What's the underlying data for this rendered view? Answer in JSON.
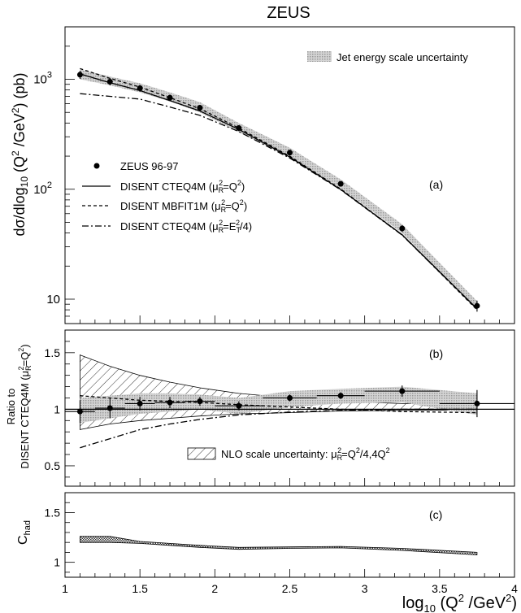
{
  "colors": {
    "frame": "#000000",
    "jes_band": "#bdbdbd",
    "nlo_hatch": "#000000",
    "chad_band": "#8c8c8c"
  },
  "chart_data": [
    {
      "id": "a",
      "type": "line",
      "title": "ZEUS",
      "panel_label": "(a)",
      "ylabel": {
        "base": "dσ/dlog",
        "sub": "10",
        "paren_open": " (Q",
        "sup": "2",
        "rest": " /GeV",
        "sup2": "2",
        "paren_close": ") (pb)"
      },
      "yscale": "log",
      "ylim": [
        6,
        3000
      ],
      "xlim": [
        1,
        4
      ],
      "y_ticks": [
        {
          "v": 10,
          "label": "10"
        },
        {
          "v": 100,
          "label": "10",
          "exp": "2"
        },
        {
          "v": 1000,
          "label": "10",
          "exp": "3"
        }
      ],
      "legend": {
        "band_label": "Jet energy scale uncertainty",
        "items": [
          {
            "style": "point",
            "label": "ZEUS 96-97"
          },
          {
            "style": "solid",
            "label": "DISENT CTEQ4M",
            "scale": "(μ",
            "scale_sub": "R",
            "scale_sup": "2",
            "scale_rest": "=Q",
            "scale_sup2": "2",
            "scale_close": ")"
          },
          {
            "style": "dashed",
            "label": "DISENT MBFIT1M",
            "scale": "(μ",
            "scale_sub": "R",
            "scale_sup": "2",
            "scale_rest": "=Q",
            "scale_sup2": "2",
            "scale_close": ")"
          },
          {
            "style": "dashdot",
            "label": "DISENT CTEQ4M",
            "scale": "(μ",
            "scale_sub": "R",
            "scale_sup": "2",
            "scale_rest": "=E",
            "scale_sub2": "T",
            "scale_sup2": "2",
            "scale_close": "/4)"
          }
        ]
      },
      "x": [
        1.1,
        1.3,
        1.5,
        1.7,
        1.9,
        2.16,
        2.5,
        2.84,
        3.25,
        3.75
      ],
      "points": [
        1100,
        950,
        830,
        680,
        550,
        360,
        215,
        112,
        44,
        8.7
      ],
      "errors": [
        90,
        70,
        60,
        45,
        35,
        22,
        12,
        6,
        3,
        1.0
      ],
      "jes_band": {
        "lo": [
          1000,
          880,
          760,
          630,
          500,
          330,
          195,
          102,
          40,
          8.0
        ],
        "hi": [
          1230,
          1060,
          920,
          760,
          620,
          400,
          238,
          123,
          48,
          9.6
        ]
      },
      "series": [
        {
          "name": "DISENT CTEQ4M (μR2=Q2)",
          "style": "solid",
          "values": [
            1120,
            930,
            790,
            640,
            515,
            350,
            196,
            99.5,
            38.5,
            8.2
          ]
        },
        {
          "name": "DISENT MBFIT1M (μR2=Q2)",
          "style": "dashed",
          "values": [
            1250,
            1020,
            850,
            680,
            540,
            360,
            200,
            100.5,
            38.5,
            8.0
          ]
        },
        {
          "name": "DISENT CTEQ4M (μR2=ET2/4)",
          "style": "dashdot",
          "values": [
            740,
            700,
            660,
            560,
            470,
            335,
            192,
            99,
            38.2,
            8.15
          ]
        }
      ]
    },
    {
      "id": "b",
      "type": "line",
      "panel_label": "(b)",
      "ylabel_line1": "Ratio to",
      "ylabel_line2": {
        "base": "DISENT CTEQ4M (μ",
        "sub": "R",
        "sup": "2",
        "rest": "=Q",
        "sup2": "2",
        "close": ")"
      },
      "ylim": [
        0.32,
        1.7
      ],
      "xlim": [
        1,
        4
      ],
      "y_ticks": [
        {
          "v": 0.5,
          "label": "0.5"
        },
        {
          "v": 1,
          "label": "1"
        },
        {
          "v": 1.5,
          "label": "1.5"
        }
      ],
      "nlo_label": {
        "text": "NLO scale uncertainty: μ",
        "sub": "R",
        "sup": "2",
        "rest": "=Q",
        "sup2": "2",
        "tail": "/4,4Q",
        "sup3": "2"
      },
      "x": [
        1.1,
        1.3,
        1.5,
        1.7,
        1.9,
        2.16,
        2.5,
        2.84,
        3.25,
        3.75
      ],
      "x_halfwidth": [
        0.1,
        0.1,
        0.1,
        0.1,
        0.1,
        0.16,
        0.18,
        0.16,
        0.25,
        0.25
      ],
      "points": [
        0.98,
        1.01,
        1.05,
        1.06,
        1.07,
        1.03,
        1.1,
        1.12,
        1.16,
        1.05
      ],
      "errors": [
        0.1,
        0.09,
        0.06,
        0.05,
        0.04,
        0.04,
        0.03,
        0.03,
        0.05,
        0.12
      ],
      "jes_band": {
        "lo": [
          0.88,
          0.92,
          0.96,
          0.98,
          1.0,
          0.96,
          1.02,
          1.05,
          1.06,
          0.95
        ],
        "hi": [
          1.1,
          1.12,
          1.14,
          1.14,
          1.13,
          1.1,
          1.16,
          1.18,
          1.2,
          1.14
        ]
      },
      "nlo_band": {
        "lo": [
          0.82,
          0.87,
          0.9,
          0.92,
          0.94,
          0.96,
          0.97,
          0.985,
          0.99,
          0.995
        ],
        "hi": [
          1.48,
          1.38,
          1.3,
          1.24,
          1.19,
          1.14,
          1.1,
          1.07,
          1.05,
          1.04
        ]
      },
      "series": [
        {
          "name": "DISENT CTEQ4M (μR2=Q2)",
          "style": "solid",
          "values": [
            1,
            1,
            1,
            1,
            1,
            1,
            1,
            1,
            1,
            1
          ]
        },
        {
          "name": "DISENT MBFIT1M (μR2=Q2)",
          "style": "dashed",
          "values": [
            1.12,
            1.1,
            1.08,
            1.07,
            1.06,
            1.04,
            1.02,
            1.0,
            0.98,
            0.97
          ]
        },
        {
          "name": "DISENT CTEQ4M (μR2=ET2/4)",
          "style": "dashdot",
          "values": [
            0.66,
            0.74,
            0.82,
            0.87,
            0.91,
            0.95,
            0.975,
            0.99,
            1.0,
            1.0
          ]
        }
      ]
    },
    {
      "id": "c",
      "type": "area",
      "panel_label": "(c)",
      "ylabel": {
        "base": "C",
        "sub": "had"
      },
      "xlabel": {
        "base": "log",
        "sub": "10",
        "open": " (Q",
        "sup": "2",
        "rest": " /GeV",
        "sup2": "2",
        "close": ")"
      },
      "ylim": [
        0.85,
        1.7
      ],
      "xlim": [
        1,
        4
      ],
      "y_ticks": [
        {
          "v": 1,
          "label": "1"
        },
        {
          "v": 1.5,
          "label": "1.5"
        }
      ],
      "x_ticks": [
        {
          "v": 1,
          "label": "1"
        },
        {
          "v": 1.5,
          "label": "1.5"
        },
        {
          "v": 2,
          "label": "2"
        },
        {
          "v": 2.5,
          "label": "2.5"
        },
        {
          "v": 3,
          "label": "3"
        },
        {
          "v": 3.5,
          "label": "3.5"
        },
        {
          "v": 4,
          "label": "4"
        }
      ],
      "x": [
        1.1,
        1.3,
        1.5,
        1.7,
        1.9,
        2.16,
        2.5,
        2.84,
        3.25,
        3.75
      ],
      "band": {
        "lo": [
          1.2,
          1.2,
          1.19,
          1.17,
          1.15,
          1.13,
          1.14,
          1.145,
          1.12,
          1.075
        ],
        "hi": [
          1.26,
          1.26,
          1.21,
          1.19,
          1.17,
          1.15,
          1.155,
          1.16,
          1.14,
          1.1
        ]
      }
    }
  ]
}
